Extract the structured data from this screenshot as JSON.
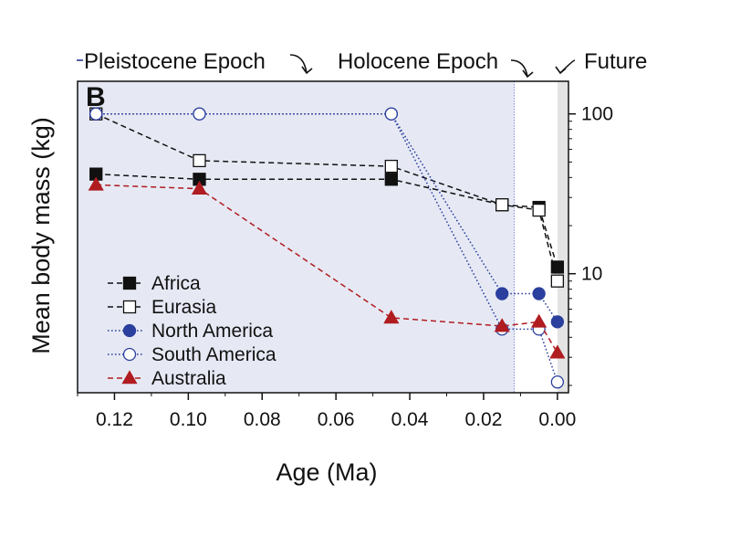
{
  "chart_data": {
    "type": "line",
    "panel_label": "B",
    "xlabel": "Age (Ma)",
    "ylabel": "Mean body mass (kg)",
    "x_reversed": true,
    "xlim": [
      0.13,
      -0.003
    ],
    "xticks": [
      0.12,
      0.1,
      0.08,
      0.06,
      0.04,
      0.02,
      0.0
    ],
    "xtick_labels": [
      "0.12",
      "0.10",
      "0.08",
      "0.06",
      "0.04",
      "0.02",
      "0.00"
    ],
    "yscale": "log",
    "ylim": [
      1.8,
      160
    ],
    "yticks": [
      10,
      100
    ],
    "ytick_labels": [
      "10",
      "100"
    ],
    "y_axis_side": "right",
    "grid": false,
    "legend_position": "bottom-left",
    "epochs": [
      {
        "label": "Pleistocene Epoch",
        "from": 0.13,
        "to": 0.0117,
        "color": "#e6e9f4",
        "label_color": "#2b3a8f"
      },
      {
        "label": "Holocene Epoch",
        "from": 0.0117,
        "to": 0.0,
        "color": "#ffffff",
        "label_color": "#111111"
      },
      {
        "label": "Future",
        "from": 0.0,
        "to": -0.003,
        "color": "#e4e4e4",
        "label_color": "#111111"
      }
    ],
    "series": [
      {
        "name": "Africa",
        "color": "#111111",
        "marker": "square",
        "filled": true,
        "dash": "dashed",
        "x": [
          0.125,
          0.097,
          0.045,
          0.015,
          0.005,
          0.0
        ],
        "y": [
          42,
          39,
          39,
          27,
          26,
          11
        ]
      },
      {
        "name": "Eurasia",
        "color": "#111111",
        "marker": "square",
        "filled": false,
        "dash": "dashed",
        "x": [
          0.125,
          0.097,
          0.045,
          0.015,
          0.005,
          0.0
        ],
        "y": [
          100,
          51,
          47,
          27,
          25,
          9
        ]
      },
      {
        "name": "North America",
        "color": "#2b3f9e",
        "marker": "circle",
        "filled": true,
        "dash": "dotted",
        "x": [
          0.125,
          0.097,
          0.045,
          0.015,
          0.005,
          0.0
        ],
        "y": [
          100,
          100,
          100,
          7.5,
          7.5,
          5
        ]
      },
      {
        "name": "South America",
        "color": "#2b3f9e",
        "marker": "circle",
        "filled": false,
        "dash": "dotted",
        "x": [
          0.125,
          0.097,
          0.045,
          0.015,
          0.005,
          0.0
        ],
        "y": [
          100,
          100,
          100,
          4.5,
          4.5,
          2.1
        ]
      },
      {
        "name": "Australia",
        "color": "#b01c20",
        "marker": "triangle",
        "filled": true,
        "dash": "dashed",
        "x": [
          0.125,
          0.097,
          0.045,
          0.015,
          0.005,
          0.0
        ],
        "y": [
          36,
          34,
          5.3,
          4.7,
          5,
          3.2
        ]
      }
    ]
  }
}
